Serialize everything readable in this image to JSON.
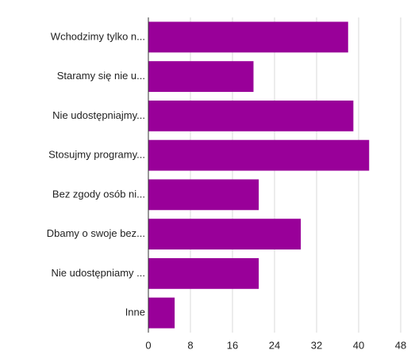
{
  "chart_data": {
    "type": "bar",
    "orientation": "horizontal",
    "categories": [
      "Wchodzimy tylko n...",
      "Staramy się nie u...",
      "Nie udostępniajmy...",
      "Stosujmy programy...",
      "Bez zgody osób ni...",
      "Dbamy o swoje bez...",
      "Nie udostępniamy ...",
      "Inne"
    ],
    "values": [
      38,
      20,
      39,
      42,
      21,
      29,
      21,
      5
    ],
    "color": "#990099",
    "xlim": [
      0,
      48
    ],
    "xticks": [
      0,
      8,
      16,
      24,
      32,
      40,
      48
    ],
    "grid": true
  }
}
